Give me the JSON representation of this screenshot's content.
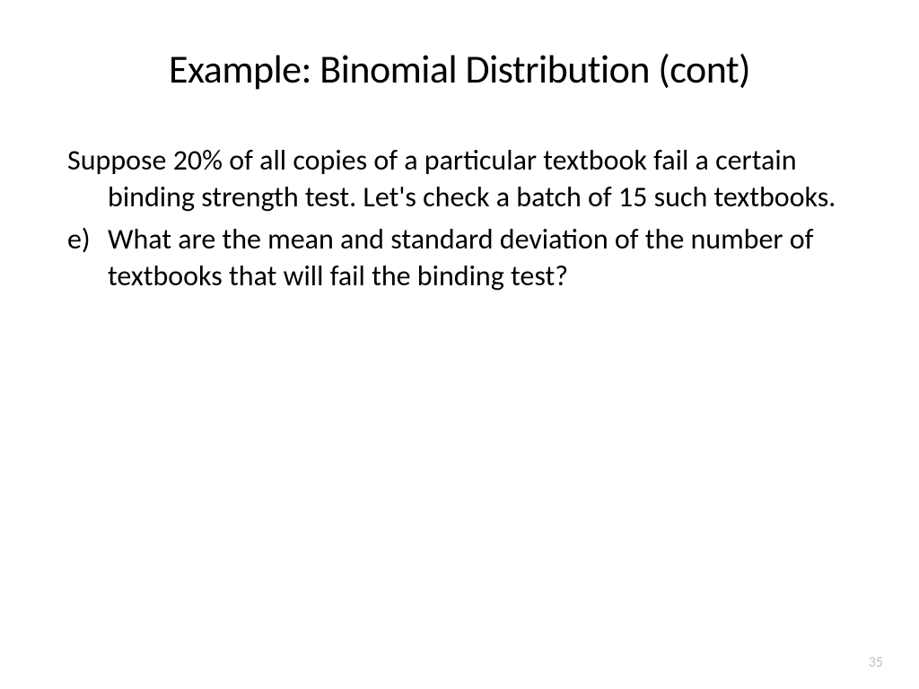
{
  "slide": {
    "title": "Example: Binomial Distribution (cont)",
    "paragraph": "Suppose 20% of all copies of a particular textbook fail a certain binding strength test. Let's check a batch of 15 such textbooks.",
    "list_marker": "e)",
    "list_item": "What are the mean and standard deviation of the number of textbooks that will fail the binding test?",
    "page_number": "35"
  },
  "style": {
    "background_color": "#ffffff",
    "text_color": "#000000",
    "page_number_color": "#bfbfbf",
    "title_fontsize": 44,
    "body_fontsize": 32,
    "page_number_fontsize": 16,
    "font_family": "Calibri"
  }
}
